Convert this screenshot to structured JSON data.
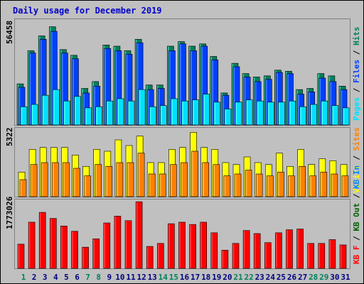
{
  "title": "Daily usage for December 2019",
  "colors": {
    "background": "#C0C0C0",
    "border": "#000000",
    "title": "#0000CC",
    "hits": "#00805C",
    "files": "#0040FF",
    "pages": "#00E0FF",
    "visits": "#FFFF00",
    "sites": "#FF8000",
    "kbin": "#0080FF",
    "kbout": "#006000",
    "kbf": "#FF0000",
    "weekend": "#00805C",
    "weekday": "#000080"
  },
  "chart_data": [
    {
      "type": "bar",
      "panel": "top",
      "categories": [
        "1",
        "2",
        "3",
        "4",
        "5",
        "6",
        "7",
        "8",
        "9",
        "10",
        "11",
        "12",
        "13",
        "14",
        "15",
        "16",
        "17",
        "18",
        "19",
        "20",
        "21",
        "22",
        "23",
        "24",
        "25",
        "26",
        "27",
        "28",
        "29",
        "30",
        "31"
      ],
      "weekend_days": [
        "1",
        "7",
        "8",
        "14",
        "15",
        "21",
        "22",
        "28",
        "29"
      ],
      "max_label": "56458",
      "legend": [
        {
          "text": "Pages",
          "color": "#00E0FF"
        },
        {
          "text": " / ",
          "color": "#000000"
        },
        {
          "text": "Files",
          "color": "#0040FF"
        },
        {
          "text": " / ",
          "color": "#000000"
        },
        {
          "text": "Hits",
          "color": "#00805C"
        }
      ],
      "series": [
        {
          "name": "Hits",
          "values": [
            36,
            65,
            78,
            86,
            66,
            61,
            32,
            38,
            70,
            69,
            65,
            75,
            35,
            35,
            69,
            73,
            69,
            71,
            60,
            28,
            54,
            45,
            42,
            43,
            48,
            47,
            31,
            32,
            45,
            43,
            34
          ]
        },
        {
          "name": "Files",
          "values": [
            33,
            63,
            75,
            82,
            63,
            58,
            28,
            34,
            67,
            65,
            62,
            72,
            31,
            32,
            65,
            71,
            65,
            69,
            57,
            26,
            51,
            42,
            38,
            40,
            46,
            45,
            27,
            29,
            41,
            38,
            31
          ]
        },
        {
          "name": "Pages",
          "values": [
            16,
            18,
            26,
            31,
            21,
            25,
            15,
            16,
            21,
            23,
            21,
            31,
            16,
            17,
            23,
            21,
            22,
            27,
            20,
            14,
            20,
            22,
            21,
            20,
            20,
            21,
            16,
            18,
            21,
            17,
            15
          ]
        }
      ],
      "ylim": [
        0,
        92
      ]
    },
    {
      "type": "bar",
      "panel": "middle",
      "categories": [
        "1",
        "2",
        "3",
        "4",
        "5",
        "6",
        "7",
        "8",
        "9",
        "10",
        "11",
        "12",
        "13",
        "14",
        "15",
        "16",
        "17",
        "18",
        "19",
        "20",
        "21",
        "22",
        "23",
        "24",
        "25",
        "26",
        "27",
        "28",
        "29",
        "30",
        "31"
      ],
      "max_label": "5322",
      "legend": [
        {
          "text": "Visits",
          "color": "#FFFF00"
        },
        {
          "text": " / ",
          "color": "#000000"
        },
        {
          "text": "Sites",
          "color": "#FF8000"
        }
      ],
      "series": [
        {
          "name": "Visits",
          "values": [
            13,
            25,
            26,
            26,
            26,
            22,
            16,
            25,
            24,
            30,
            27,
            32,
            18,
            18,
            25,
            26,
            34,
            26,
            25,
            18,
            17,
            21,
            18,
            17,
            23,
            16,
            25,
            17,
            20,
            19,
            17
          ]
        },
        {
          "name": "Sites",
          "values": [
            9,
            17,
            18,
            18,
            18,
            15,
            11,
            17,
            16,
            18,
            18,
            23,
            12,
            12,
            17,
            18,
            24,
            18,
            17,
            11,
            12,
            14,
            12,
            11,
            13,
            11,
            16,
            11,
            13,
            12,
            11
          ]
        }
      ],
      "ylim": [
        0,
        36
      ]
    },
    {
      "type": "bar",
      "panel": "bottom",
      "categories": [
        "1",
        "2",
        "3",
        "4",
        "5",
        "6",
        "7",
        "8",
        "9",
        "10",
        "11",
        "12",
        "13",
        "14",
        "15",
        "16",
        "17",
        "18",
        "19",
        "20",
        "21",
        "22",
        "23",
        "24",
        "25",
        "26",
        "27",
        "28",
        "29",
        "30",
        "31"
      ],
      "max_label": "1773026",
      "legend": [
        {
          "text": "KB F",
          "color": "#FF0000"
        },
        {
          "text": " / ",
          "color": "#000000"
        },
        {
          "text": "KB Out",
          "color": "#006000"
        },
        {
          "text": " / ",
          "color": "#000000"
        },
        {
          "text": "KB In",
          "color": "#0080FF"
        }
      ],
      "series": [
        {
          "name": "KB F",
          "values": [
            32,
            61,
            74,
            66,
            56,
            49,
            28,
            39,
            60,
            69,
            63,
            88,
            29,
            33,
            59,
            61,
            58,
            61,
            47,
            24,
            33,
            50,
            46,
            34,
            47,
            51,
            52,
            33,
            33,
            38,
            31
          ]
        }
      ],
      "ylim": [
        0,
        90
      ]
    }
  ]
}
